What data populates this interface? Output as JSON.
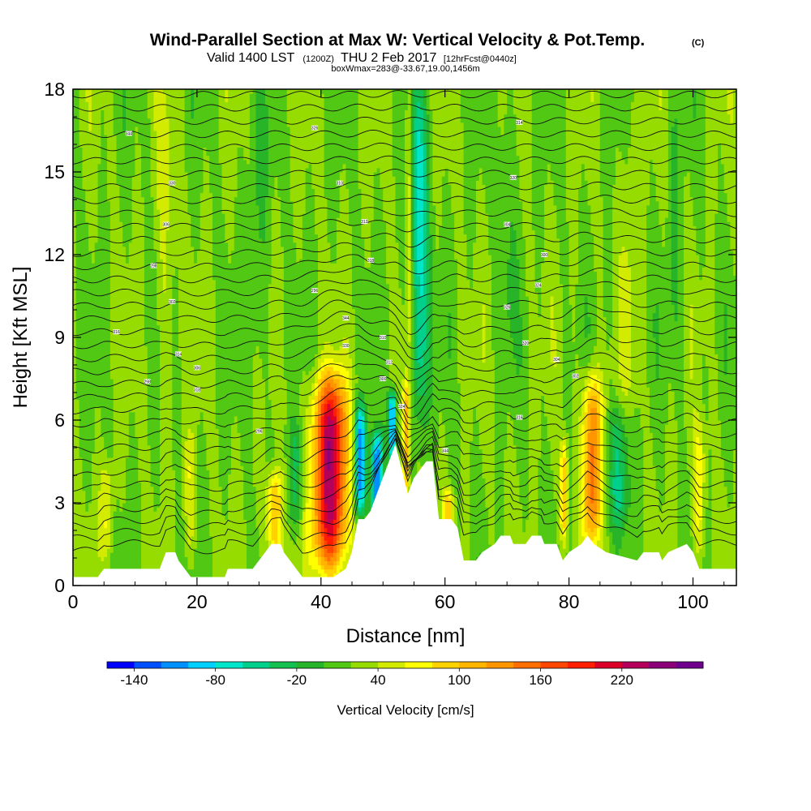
{
  "chart_data": {
    "type": "heatmap",
    "title": "Wind-Parallel Section at Max W: Vertical Velocity & Pot.Temp.",
    "title_mark": "(C)",
    "subtitle_main": "Valid 1400 LST",
    "subtitle_utc": "(1200Z)",
    "subtitle_date": "THU 2 Feb 2017",
    "subtitle_fcst": "[12hrFcst@0440z]",
    "box_info": "boxWmax=283@-33.67,19.00,1456m",
    "xlabel": "Distance [nm]",
    "ylabel": "Height [Kft MSL]",
    "xlim": [
      0,
      107
    ],
    "ylim": [
      0,
      18
    ],
    "x_ticks": [
      0,
      20,
      40,
      60,
      80,
      100
    ],
    "y_ticks": [
      0,
      3,
      6,
      9,
      12,
      15,
      18
    ],
    "background_w": 20,
    "w_features": [
      {
        "x": 41.5,
        "zmin": 0.5,
        "zmax": 7.6,
        "w": 235,
        "halfwidth": 2.7
      },
      {
        "x": 83.8,
        "zmin": 1.5,
        "zmax": 7.7,
        "w": 150,
        "halfwidth": 1.5
      },
      {
        "x": 32.5,
        "zmin": 0.8,
        "zmax": 4.2,
        "w": 105,
        "halfwidth": 1.3
      },
      {
        "x": 46.3,
        "zmin": 2.5,
        "zmax": 6.6,
        "w": -115,
        "halfwidth": 0.9
      },
      {
        "x": 49.0,
        "zmin": 2.0,
        "zmax": 5.6,
        "w": -130,
        "halfwidth": 1.0
      },
      {
        "x": 51.5,
        "zmin": 4.5,
        "zmax": 7.1,
        "w": -115,
        "halfwidth": 0.6
      },
      {
        "x": 53.7,
        "zmin": 3.0,
        "zmax": 7.5,
        "w": 120,
        "halfwidth": 0.6
      },
      {
        "x": 55.8,
        "zmin": 6.0,
        "zmax": 18.0,
        "w": -70,
        "halfwidth": 1.6
      },
      {
        "x": 54.2,
        "zmin": 7.5,
        "zmax": 18.0,
        "w": 75,
        "halfwidth": 0.6
      },
      {
        "x": 79.2,
        "zmin": 1.5,
        "zmax": 5.3,
        "w": 100,
        "halfwidth": 0.6
      },
      {
        "x": 18.8,
        "zmin": 1.0,
        "zmax": 5.5,
        "w": 55,
        "halfwidth": 0.9
      },
      {
        "x": 5.5,
        "zmin": 1.0,
        "zmax": 4.5,
        "w": 60,
        "halfwidth": 1.0
      },
      {
        "x": 101.0,
        "zmin": 1.0,
        "zmax": 6.0,
        "w": 70,
        "halfwidth": 1.0
      },
      {
        "x": 60.5,
        "zmin": 2.0,
        "zmax": 3.5,
        "w": 90,
        "halfwidth": 0.8
      },
      {
        "x": 88.0,
        "zmin": 2.0,
        "zmax": 6.5,
        "w": -40,
        "halfwidth": 1.8
      },
      {
        "x": 36.0,
        "zmin": 2.0,
        "zmax": 6.0,
        "w": -25,
        "halfwidth": 1.2
      },
      {
        "x": 15.0,
        "zmin": 6.0,
        "zmax": 18.0,
        "w": 45,
        "halfwidth": 1.5
      },
      {
        "x": 30.0,
        "zmin": 7.0,
        "zmax": 18.0,
        "w": 0,
        "halfwidth": 1.8
      },
      {
        "x": 70.0,
        "zmin": 8.0,
        "zmax": 18.0,
        "w": 0,
        "halfwidth": 1.5
      },
      {
        "x": 90.0,
        "zmin": 6.0,
        "zmax": 18.0,
        "w": 40,
        "halfwidth": 1.5
      },
      {
        "x": 97.0,
        "zmin": 8.0,
        "zmax": 18.0,
        "w": 0,
        "halfwidth": 1.2
      }
    ],
    "terrain": [
      [
        0,
        0.3
      ],
      [
        4,
        0.3
      ],
      [
        5,
        0.6
      ],
      [
        14,
        0.6
      ],
      [
        15,
        1.2
      ],
      [
        16.5,
        1.2
      ],
      [
        17,
        0.9
      ],
      [
        19,
        0.3
      ],
      [
        24.5,
        0.3
      ],
      [
        25,
        0.6
      ],
      [
        29,
        0.6
      ],
      [
        30,
        0.9
      ],
      [
        31,
        1.2
      ],
      [
        32,
        1.5
      ],
      [
        33.5,
        1.5
      ],
      [
        34,
        1.2
      ],
      [
        35,
        0.9
      ],
      [
        36,
        0.6
      ],
      [
        37,
        0.3
      ],
      [
        39,
        0.3
      ],
      [
        42,
        0.3
      ],
      [
        44,
        0.6
      ],
      [
        45,
        1.2
      ],
      [
        46,
        2.4
      ],
      [
        47,
        2.4
      ],
      [
        48,
        2.7
      ],
      [
        49,
        3.3
      ],
      [
        50,
        3.9
      ],
      [
        51,
        4.5
      ],
      [
        52,
        5.1
      ],
      [
        53,
        4.2
      ],
      [
        54,
        3.3
      ],
      [
        55,
        3.9
      ],
      [
        56,
        4.2
      ],
      [
        57,
        4.5
      ],
      [
        58,
        4.5
      ],
      [
        59,
        2.4
      ],
      [
        61,
        2.4
      ],
      [
        62,
        2.1
      ],
      [
        63,
        0.9
      ],
      [
        65,
        0.9
      ],
      [
        66,
        1.2
      ],
      [
        68,
        1.5
      ],
      [
        69,
        1.8
      ],
      [
        70.5,
        1.8
      ],
      [
        71,
        1.5
      ],
      [
        73,
        1.5
      ],
      [
        74,
        1.8
      ],
      [
        75.5,
        1.8
      ],
      [
        76,
        1.5
      ],
      [
        77,
        1.5
      ],
      [
        78,
        1.5
      ],
      [
        79,
        0.9
      ],
      [
        80,
        1.2
      ],
      [
        82,
        1.5
      ],
      [
        83,
        1.8
      ],
      [
        84,
        1.5
      ],
      [
        86,
        1.2
      ],
      [
        91,
        0.9
      ],
      [
        92,
        1.2
      ],
      [
        94.5,
        1.2
      ],
      [
        95,
        0.9
      ],
      [
        96,
        1.2
      ],
      [
        99,
        1.5
      ],
      [
        100,
        1.2
      ],
      [
        101,
        0.6
      ],
      [
        107,
        0.6
      ]
    ],
    "contour_labels": [
      "344",
      "326",
      "314",
      "330",
      "310",
      "320",
      "306",
      "312",
      "304",
      "298",
      "318",
      "300",
      "302",
      "296",
      "324",
      "316"
    ],
    "colorbar": {
      "label": "Vertical Velocity [cm/s]",
      "min": -160,
      "max": 280,
      "step": 20,
      "tick_values": [
        -140,
        -80,
        -20,
        40,
        100,
        160,
        220
      ],
      "tick_labels": [
        "-140",
        "-80",
        "-20",
        "40",
        "100",
        "160",
        "220"
      ],
      "colors": [
        "#0000ff",
        "#0050ff",
        "#0090ff",
        "#00d0ff",
        "#00e6c8",
        "#00d08c",
        "#14c050",
        "#28b428",
        "#50c814",
        "#96dc00",
        "#d2eb00",
        "#ffff00",
        "#ffd200",
        "#ffb400",
        "#ff9600",
        "#ff6e00",
        "#ff4600",
        "#ff1e00",
        "#dc0028",
        "#b4005a",
        "#8c0078",
        "#6e008c"
      ]
    }
  }
}
